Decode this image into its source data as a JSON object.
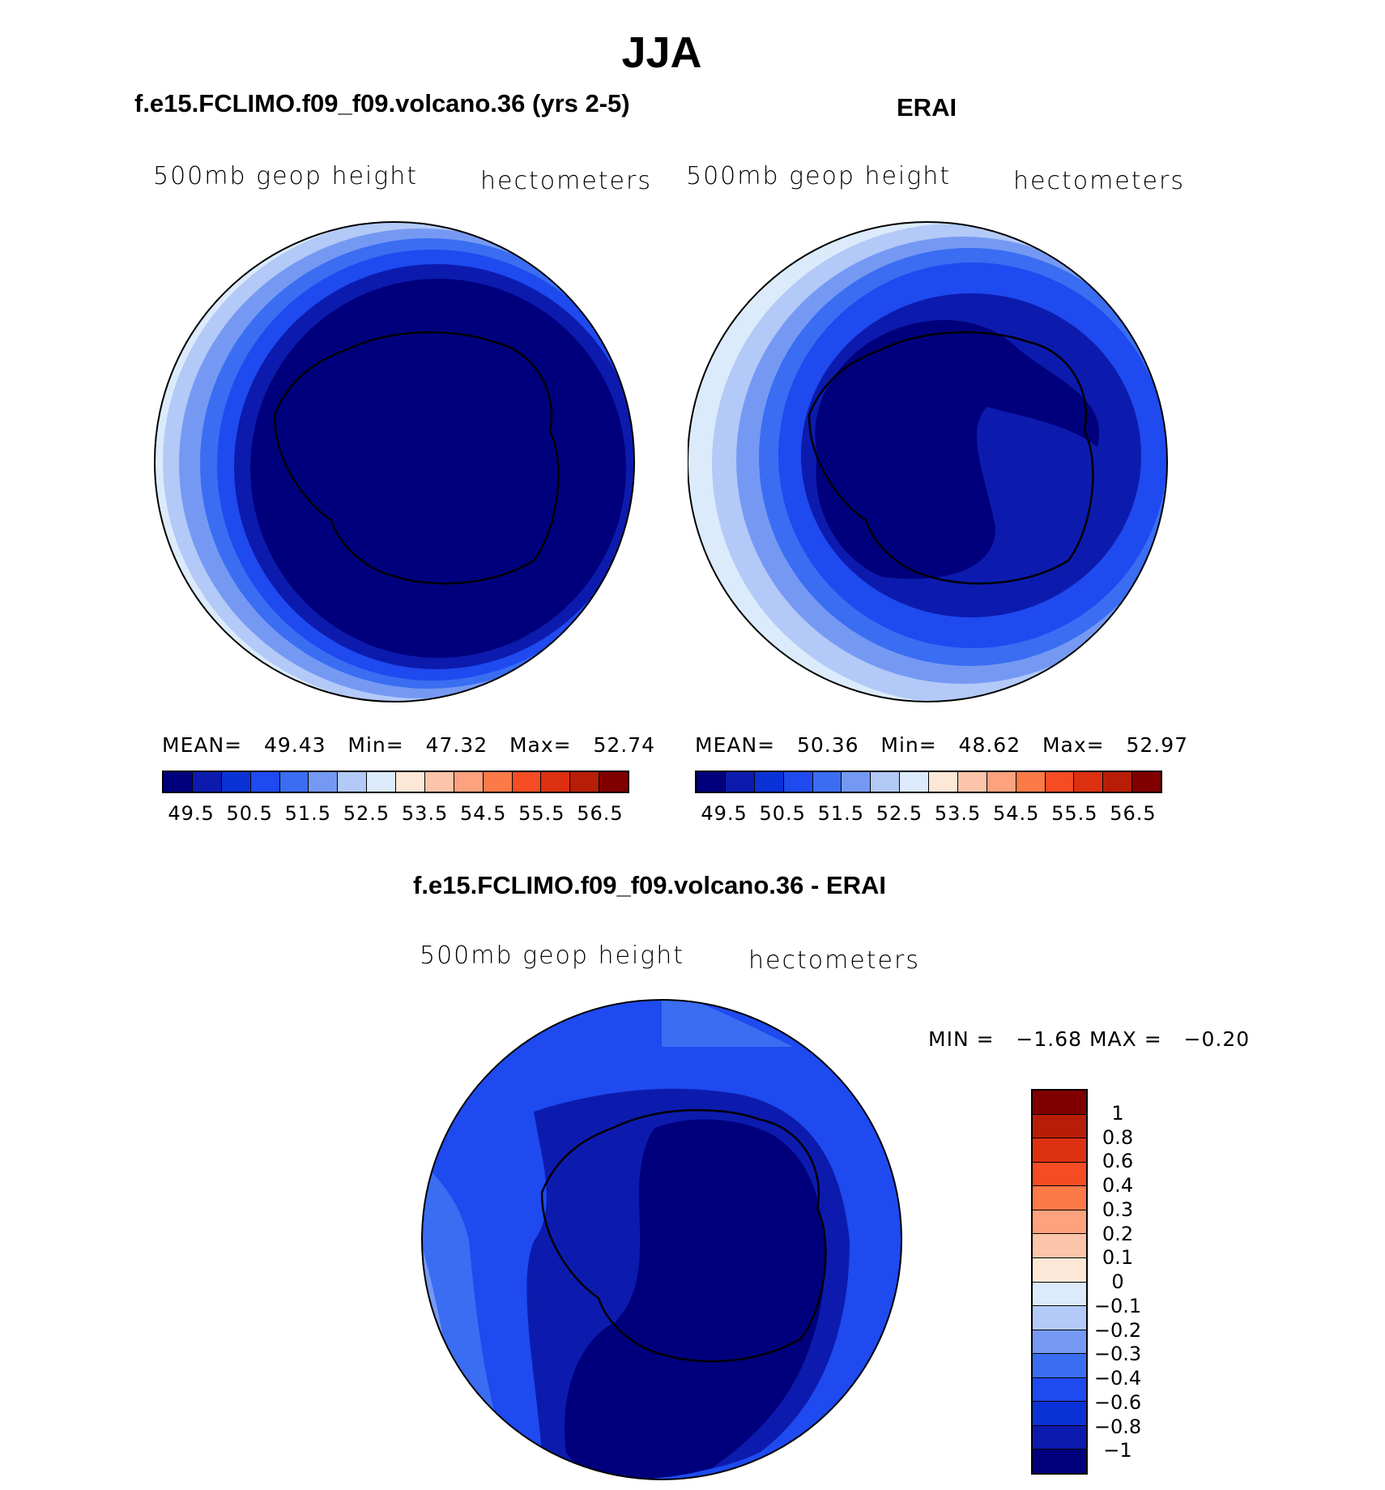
{
  "title": "JJA",
  "panels": [
    {
      "title": "f.e15.FCLIMO.f09_f09.volcano.36 (yrs 2-5)",
      "left_label": "500mb geop height",
      "right_label": "hectometers",
      "stats": {
        "mean_label": "MEAN=",
        "mean": "49.43",
        "min_label": "Min=",
        "min": "47.32",
        "max_label": "Max=",
        "max": "52.74"
      }
    },
    {
      "title": "ERAI",
      "left_label": "500mb geop height",
      "right_label": "hectometers",
      "stats": {
        "mean_label": "MEAN=",
        "mean": "50.36",
        "min_label": "Min=",
        "min": "48.62",
        "max_label": "Max=",
        "max": "52.97"
      }
    },
    {
      "title": "f.e15.FCLIMO.f09_f09.volcano.36 - ERAI",
      "left_label": "500mb geop height",
      "right_label": "hectometers",
      "stats": {
        "min_label": "MIN =",
        "min": "−1.68",
        "max_label": "MAX =",
        "max": "−0.20"
      }
    }
  ],
  "chart_data": [
    {
      "type": "heatmap",
      "projection": "south-polar stereographic",
      "title": "f.e15.FCLIMO.f09_f09.volcano.36 (yrs 2-5)",
      "field": "500mb geop height",
      "units": "hectometers",
      "mean": 49.43,
      "min": 47.32,
      "max": 52.74,
      "colorbar": {
        "orientation": "horizontal",
        "levels": [
          49.5,
          50,
          50.5,
          51,
          51.5,
          52,
          52.5,
          53,
          53.5,
          54,
          54.5,
          55,
          55.5,
          56,
          56.5
        ],
        "tick_labels": [
          "49.5",
          "50.5",
          "51.5",
          "52.5",
          "53.5",
          "54.5",
          "55.5",
          "56.5"
        ]
      }
    },
    {
      "type": "heatmap",
      "projection": "south-polar stereographic",
      "title": "ERAI",
      "field": "500mb geop height",
      "units": "hectometers",
      "mean": 50.36,
      "min": 48.62,
      "max": 52.97,
      "colorbar": {
        "orientation": "horizontal",
        "levels": [
          49.5,
          50,
          50.5,
          51,
          51.5,
          52,
          52.5,
          53,
          53.5,
          54,
          54.5,
          55,
          55.5,
          56,
          56.5
        ],
        "tick_labels": [
          "49.5",
          "50.5",
          "51.5",
          "52.5",
          "53.5",
          "54.5",
          "55.5",
          "56.5"
        ]
      }
    },
    {
      "type": "heatmap",
      "projection": "south-polar stereographic",
      "title": "f.e15.FCLIMO.f09_f09.volcano.36 - ERAI",
      "field": "500mb geop height",
      "units": "hectometers",
      "min": -1.68,
      "max": -0.2,
      "colorbar": {
        "orientation": "vertical",
        "tick_labels": [
          "1",
          "0.8",
          "0.6",
          "0.4",
          "0.3",
          "0.2",
          "0.1",
          "0",
          "−0.1",
          "−0.2",
          "−0.3",
          "−0.4",
          "−0.6",
          "−0.8",
          "−1"
        ]
      }
    }
  ],
  "colors": {
    "palette": [
      "#00007d",
      "#0c1bae",
      "#0a32d6",
      "#1e4af0",
      "#3a6df2",
      "#7599f3",
      "#b3c9f7",
      "#dcebfb",
      "#fde8d8",
      "#fcc5aa",
      "#fca27f",
      "#fb7a47",
      "#f54c23",
      "#dc3010",
      "#b81e07",
      "#800000"
    ],
    "coast": "#000000"
  }
}
